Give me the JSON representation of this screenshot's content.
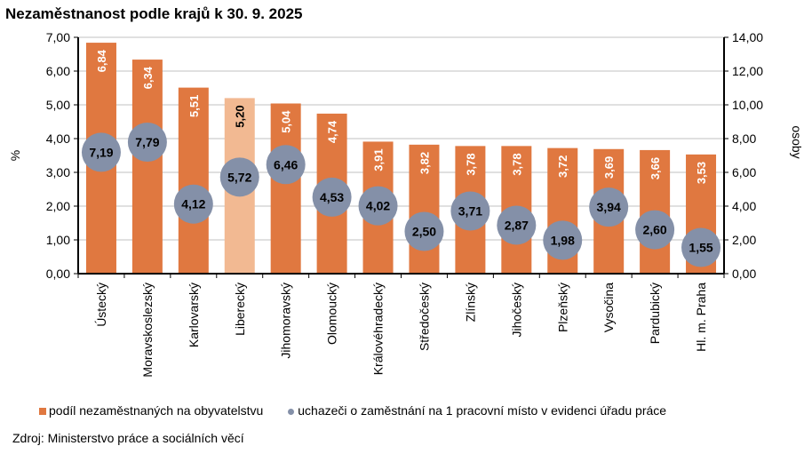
{
  "chart_data": {
    "type": "bar",
    "title": "Nezaměstnanost podle krajů k 30. 9. 2025",
    "categories": [
      "Ústecký",
      "Moravskoslezský",
      "Karlovarský",
      "Liberecký",
      "Jihomoravský",
      "Olomoucký",
      "Královéhradecký",
      "Středočeský",
      "Zlínský",
      "Jihočeský",
      "Plzeňský",
      "Vysočina",
      "Pardubický",
      "Hl. m. Praha"
    ],
    "series": [
      {
        "name": "podíl nezaměstnaných na obyvatelstvu",
        "type": "bar",
        "axis": "left",
        "color": "#E07840",
        "highlight_color": "#F2B992",
        "highlight_index": 3,
        "values": [
          6.84,
          6.34,
          5.51,
          5.2,
          5.04,
          4.74,
          3.91,
          3.82,
          3.78,
          3.78,
          3.72,
          3.69,
          3.66,
          3.53
        ],
        "labels": [
          "6,84",
          "6,34",
          "5,51",
          "5,20",
          "5,04",
          "4,74",
          "3,91",
          "3,82",
          "3,78",
          "3,78",
          "3,72",
          "3,69",
          "3,66",
          "3,53"
        ]
      },
      {
        "name": "uchazeči o zaměstnání na 1 pracovní místo v evidenci úřadu práce",
        "type": "scatter",
        "axis": "right",
        "color": "#8490A8",
        "values": [
          7.19,
          7.79,
          4.12,
          5.72,
          6.46,
          4.53,
          4.02,
          2.5,
          3.71,
          2.87,
          1.98,
          3.94,
          2.6,
          1.55
        ],
        "labels": [
          "7,19",
          "7,79",
          "4,12",
          "5,72",
          "6,46",
          "4,53",
          "4,02",
          "2,50",
          "3,71",
          "2,87",
          "1,98",
          "3,94",
          "2,60",
          "1,55"
        ]
      }
    ],
    "ylabel": "%",
    "ylim": [
      0,
      7
    ],
    "yticks": [
      "0,00",
      "1,00",
      "2,00",
      "3,00",
      "4,00",
      "5,00",
      "6,00",
      "7,00"
    ],
    "y2label": "osoby",
    "y2lim": [
      0,
      14
    ],
    "y2ticks": [
      "0,00",
      "2,00",
      "4,00",
      "6,00",
      "8,00",
      "10,00",
      "12,00",
      "14,00"
    ],
    "grid": true,
    "legend": "bottom"
  },
  "source": "Zdroj: Ministerstvo  práce a sociálních věcí"
}
